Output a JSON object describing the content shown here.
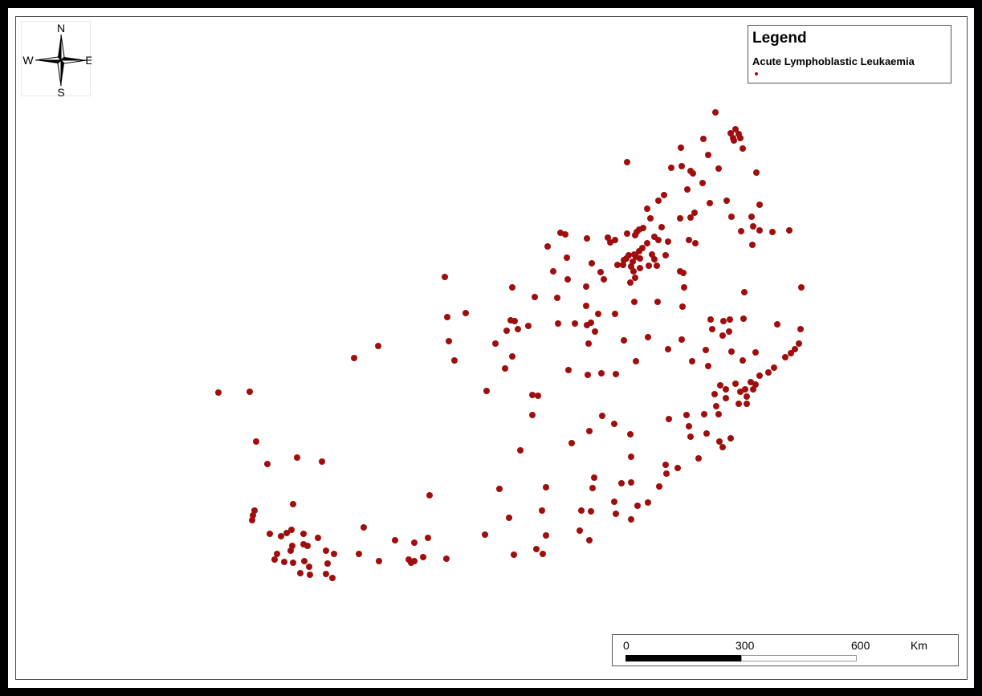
{
  "compass": {
    "n": "N",
    "s": "S",
    "e": "E",
    "w": "W",
    "icon": "compass-rose-icon"
  },
  "legend": {
    "title": "Legend",
    "items": [
      {
        "label": "Acute Lymphoblastic Leukaemia",
        "color": "#a00d0d",
        "symbol": "dot"
      }
    ]
  },
  "scalebar": {
    "ticks": [
      "0",
      "300",
      "600"
    ],
    "unit": "Km"
  },
  "colors": {
    "point": "#a00d0d",
    "frame": "#000000",
    "background": "#ffffff"
  }
}
